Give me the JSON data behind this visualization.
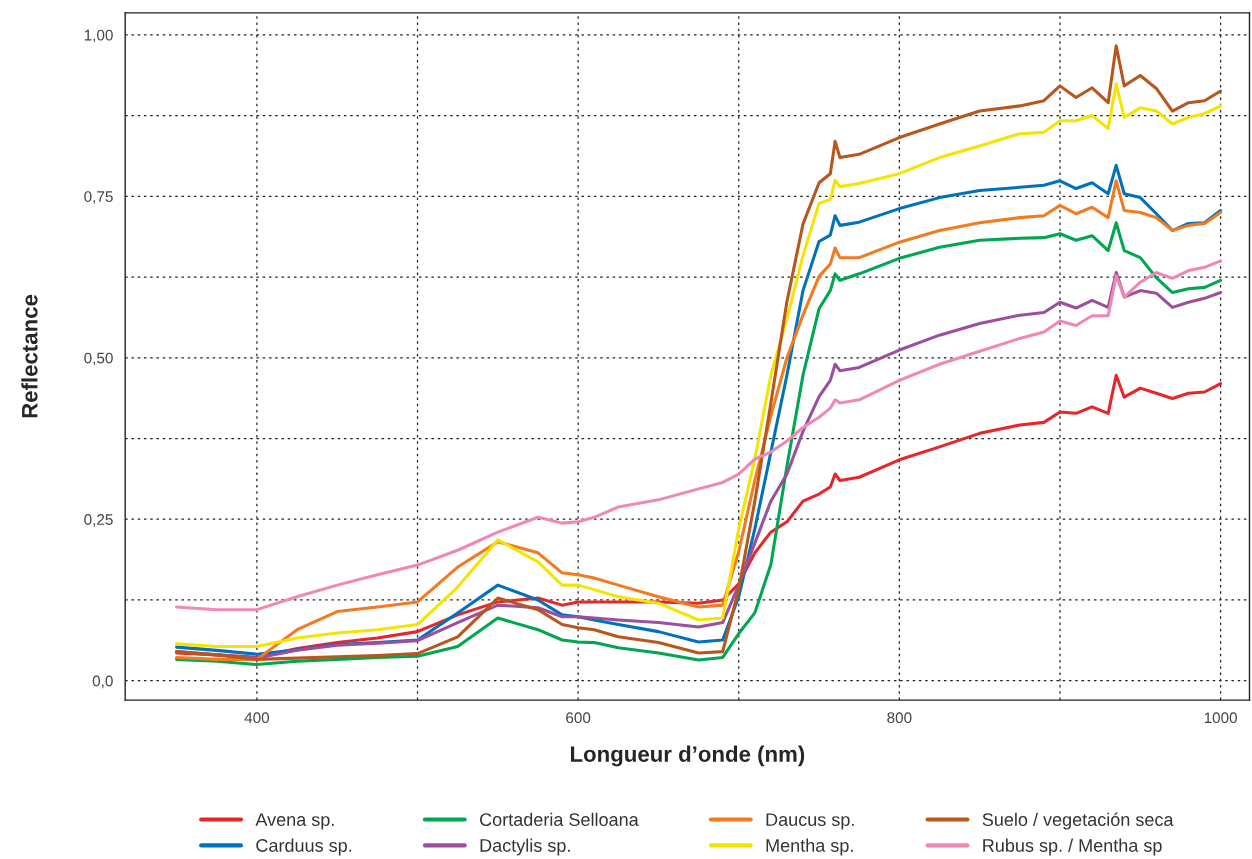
{
  "chart_data": {
    "type": "line",
    "xlabel": "Longueur d’onde (nm)",
    "ylabel": "Reflectance",
    "x": [
      350,
      375,
      400,
      425,
      450,
      475,
      500,
      525,
      550,
      575,
      590,
      600,
      610,
      625,
      650,
      675,
      690,
      700,
      710,
      720,
      730,
      740,
      750,
      757,
      760,
      763,
      775,
      800,
      825,
      850,
      875,
      890,
      900,
      910,
      920,
      930,
      935,
      940,
      950,
      960,
      970,
      980,
      990,
      1000
    ],
    "series": [
      {
        "name": "Avena sp.",
        "color": "#e8262a",
        "values": [
          0.043,
          0.04,
          0.036,
          0.05,
          0.059,
          0.066,
          0.076,
          0.102,
          0.122,
          0.128,
          0.117,
          0.122,
          0.122,
          0.122,
          0.122,
          0.12,
          0.125,
          0.15,
          0.198,
          0.23,
          0.246,
          0.278,
          0.289,
          0.3,
          0.32,
          0.31,
          0.315,
          0.342,
          0.362,
          0.383,
          0.396,
          0.4,
          0.416,
          0.414,
          0.424,
          0.414,
          0.473,
          0.439,
          0.453,
          0.445,
          0.437,
          0.445,
          0.447,
          0.46
        ]
      },
      {
        "name": "Carduus sp.",
        "color": "#0072bd",
        "values": [
          0.052,
          0.047,
          0.041,
          0.048,
          0.056,
          0.059,
          0.063,
          0.105,
          0.148,
          0.125,
          0.102,
          0.099,
          0.094,
          0.087,
          0.076,
          0.06,
          0.063,
          0.13,
          0.235,
          0.354,
          0.473,
          0.604,
          0.68,
          0.69,
          0.72,
          0.705,
          0.71,
          0.731,
          0.748,
          0.759,
          0.764,
          0.767,
          0.774,
          0.762,
          0.771,
          0.754,
          0.798,
          0.754,
          0.748,
          0.723,
          0.697,
          0.708,
          0.709,
          0.728
        ]
      },
      {
        "name": "Cortaderia Selloana",
        "color": "#00a650",
        "values": [
          0.033,
          0.03,
          0.025,
          0.03,
          0.033,
          0.036,
          0.038,
          0.053,
          0.097,
          0.079,
          0.063,
          0.06,
          0.059,
          0.051,
          0.043,
          0.032,
          0.036,
          0.073,
          0.105,
          0.18,
          0.332,
          0.473,
          0.576,
          0.604,
          0.63,
          0.62,
          0.63,
          0.654,
          0.671,
          0.682,
          0.685,
          0.686,
          0.692,
          0.682,
          0.689,
          0.666,
          0.709,
          0.666,
          0.655,
          0.624,
          0.601,
          0.607,
          0.609,
          0.62
        ]
      },
      {
        "name": "Dactylis sp.",
        "color": "#9b4f9e",
        "values": [
          0.045,
          0.04,
          0.035,
          0.047,
          0.055,
          0.058,
          0.062,
          0.09,
          0.117,
          0.113,
          0.099,
          0.099,
          0.097,
          0.094,
          0.09,
          0.083,
          0.09,
          0.148,
          0.213,
          0.278,
          0.32,
          0.386,
          0.44,
          0.465,
          0.49,
          0.48,
          0.485,
          0.512,
          0.535,
          0.553,
          0.566,
          0.57,
          0.586,
          0.577,
          0.589,
          0.578,
          0.632,
          0.594,
          0.604,
          0.6,
          0.578,
          0.586,
          0.592,
          0.601
        ]
      },
      {
        "name": "Daucus sp.",
        "color": "#f47a20",
        "values": [
          0.036,
          0.033,
          0.033,
          0.079,
          0.107,
          0.114,
          0.122,
          0.176,
          0.215,
          0.198,
          0.167,
          0.164,
          0.159,
          0.148,
          0.13,
          0.114,
          0.117,
          0.2,
          0.31,
          0.41,
          0.5,
          0.566,
          0.626,
          0.645,
          0.67,
          0.655,
          0.655,
          0.679,
          0.697,
          0.709,
          0.717,
          0.72,
          0.736,
          0.723,
          0.733,
          0.717,
          0.774,
          0.728,
          0.725,
          0.717,
          0.697,
          0.705,
          0.708,
          0.725
        ]
      },
      {
        "name": "Mentha sp.",
        "color": "#f2e600",
        "values": [
          0.057,
          0.053,
          0.053,
          0.066,
          0.074,
          0.079,
          0.087,
          0.145,
          0.218,
          0.184,
          0.148,
          0.148,
          0.141,
          0.13,
          0.12,
          0.094,
          0.097,
          0.235,
          0.343,
          0.473,
          0.56,
          0.658,
          0.739,
          0.745,
          0.775,
          0.765,
          0.77,
          0.785,
          0.81,
          0.828,
          0.847,
          0.849,
          0.867,
          0.867,
          0.875,
          0.855,
          0.924,
          0.872,
          0.887,
          0.882,
          0.862,
          0.872,
          0.878,
          0.89
        ]
      },
      {
        "name": "Suelo / vegetación seca",
        "color": "#b8561d",
        "values": [
          0.045,
          0.04,
          0.033,
          0.035,
          0.037,
          0.039,
          0.042,
          0.068,
          0.128,
          0.11,
          0.087,
          0.082,
          0.079,
          0.068,
          0.059,
          0.043,
          0.045,
          0.142,
          0.278,
          0.43,
          0.587,
          0.707,
          0.771,
          0.785,
          0.835,
          0.81,
          0.815,
          0.841,
          0.862,
          0.882,
          0.89,
          0.898,
          0.921,
          0.903,
          0.918,
          0.895,
          0.983,
          0.921,
          0.937,
          0.917,
          0.882,
          0.895,
          0.898,
          0.913
        ]
      },
      {
        "name": "Rubus sp. / Mentha sp",
        "color": "#f088b6",
        "values": [
          0.114,
          0.11,
          0.11,
          0.13,
          0.148,
          0.164,
          0.179,
          0.202,
          0.23,
          0.253,
          0.244,
          0.246,
          0.253,
          0.269,
          0.28,
          0.297,
          0.307,
          0.32,
          0.343,
          0.354,
          0.371,
          0.392,
          0.408,
          0.422,
          0.435,
          0.43,
          0.435,
          0.465,
          0.49,
          0.51,
          0.53,
          0.54,
          0.557,
          0.55,
          0.565,
          0.565,
          0.627,
          0.594,
          0.617,
          0.632,
          0.623,
          0.635,
          0.64,
          0.65
        ]
      }
    ],
    "xlim": [
      318,
      1018
    ],
    "ylim": [
      -0.03,
      1.034
    ],
    "xticks": [
      400,
      {
        "value": 500,
        "label": null
      },
      600,
      {
        "value": 700,
        "label": null
      },
      800,
      {
        "value": 900,
        "label": null
      },
      1000
    ],
    "yticks": [
      {
        "value": 0,
        "label": "0,0"
      },
      {
        "value": 0.125,
        "label": null
      },
      {
        "value": 0.25,
        "label": "0,25"
      },
      {
        "value": 0.375,
        "label": null
      },
      {
        "value": 0.5,
        "label": "0,50"
      },
      {
        "value": 0.625,
        "label": null
      },
      {
        "value": 0.75,
        "label": "0,75"
      },
      {
        "value": 0.875,
        "label": null
      },
      {
        "value": 1.0,
        "label": "1,00"
      }
    ],
    "grid": true,
    "legend": "bottom",
    "line_style": "solid",
    "marker": "none"
  }
}
